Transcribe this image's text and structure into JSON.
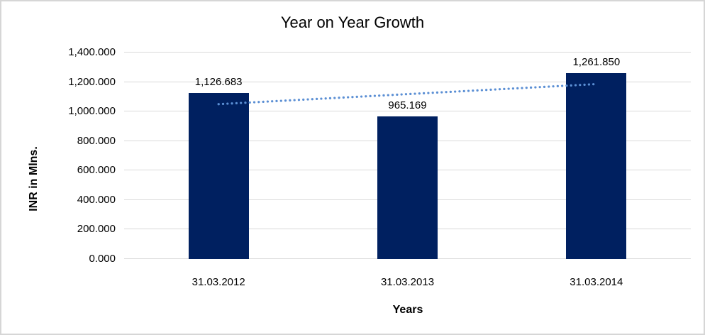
{
  "chart": {
    "title": "Year on Year Growth",
    "y_axis_title": "INR in Mlns.",
    "x_axis_title": "Years"
  },
  "chart_data": {
    "type": "bar",
    "title": "Year on Year Growth",
    "xlabel": "Years",
    "ylabel": "INR in Mlns.",
    "categories": [
      "31.03.2012",
      "31.03.2013",
      "31.03.2014"
    ],
    "values": [
      1126.683,
      965.169,
      1261.85
    ],
    "data_labels": [
      "1,126.683",
      "965.169",
      "1,261.850"
    ],
    "ylim": [
      0,
      1400
    ],
    "y_ticks": [
      0,
      200,
      400,
      600,
      800,
      1000,
      1200,
      1400
    ],
    "y_tick_labels": [
      "0.000",
      "200.000",
      "400.000",
      "600.000",
      "800.000",
      "1,000.000",
      "1,200.000",
      "1,400.000"
    ],
    "grid": true,
    "legend": false,
    "bar_color": "#002060",
    "gridline_color": "#d9d9d9",
    "trendline": {
      "type": "linear",
      "style": "dotted",
      "color": "#5b8fd4",
      "start_value": 1050,
      "end_value": 1186
    }
  }
}
